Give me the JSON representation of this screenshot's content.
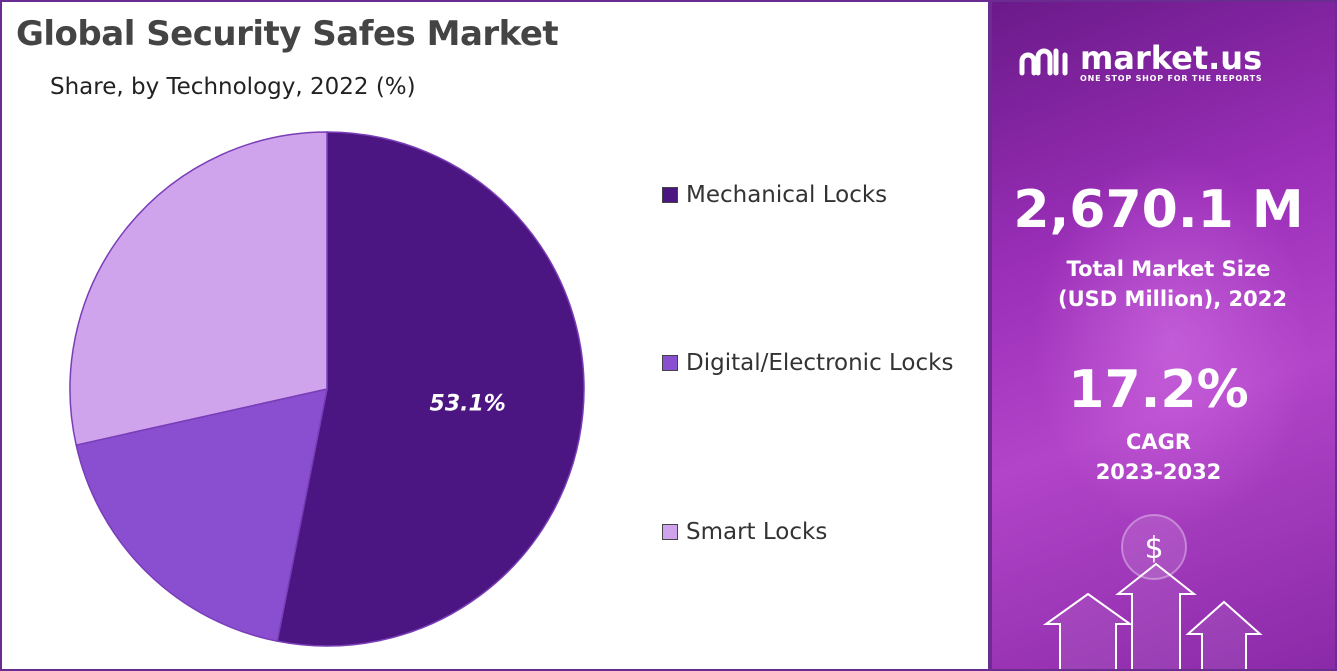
{
  "chart_data": {
    "type": "pie",
    "title": "Global Security Safes Market",
    "subtitle": "Share, by Technology, 2022 (%)",
    "categories": [
      "Mechanical Locks",
      "Digital/Electronic Locks",
      "Smart Locks"
    ],
    "values": [
      53.1,
      18.4,
      28.5
    ],
    "value_labels": [
      "53.1%",
      "",
      ""
    ],
    "colors": [
      "#4b1681",
      "#8a4fd0",
      "#cfa4ec"
    ],
    "legend_position": "right"
  },
  "side": {
    "brand_name": "market.us",
    "brand_tagline": "ONE STOP SHOP FOR THE REPORTS",
    "market_size_value": "2,670.1 M",
    "market_size_label_1": "Total Market Size",
    "market_size_label_2": "(USD Million), 2022",
    "cagr_value": "17.2%",
    "cagr_label_1": "CAGR",
    "cagr_label_2": "2023-2032",
    "currency_symbol": "$",
    "colors": {
      "background": "#9b2fb8",
      "border": "#6a2c91"
    }
  }
}
